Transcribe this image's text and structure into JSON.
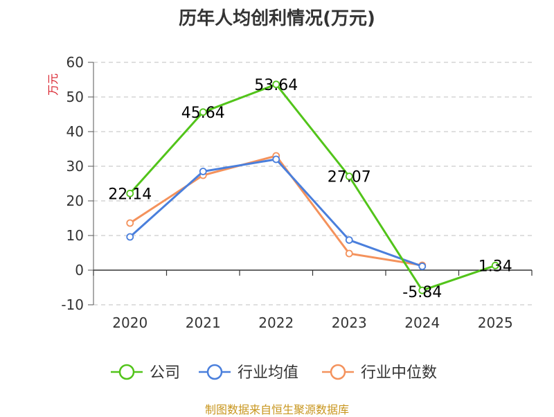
{
  "chart_data": {
    "type": "line",
    "title": "历年人均创利情况(万元)",
    "ylabel": "万元",
    "categories": [
      "2020",
      "2021",
      "2022",
      "2023",
      "2024",
      "2025"
    ],
    "ylim": [
      -10,
      60
    ],
    "yticks": [
      -10,
      0,
      10,
      20,
      30,
      40,
      50,
      60
    ],
    "grid": true,
    "legend_position": "bottom",
    "series": [
      {
        "name": "公司",
        "color": "#52c41a",
        "labeled": true,
        "values": [
          22.14,
          45.64,
          53.64,
          27.07,
          -5.84,
          1.34
        ],
        "labels": [
          "22.14",
          "45.64",
          "53.64",
          "27.07",
          "-5.84",
          "1.34"
        ]
      },
      {
        "name": "行业均值",
        "color": "#4a7fdc",
        "labeled": false,
        "values": [
          9.6,
          28.5,
          32.0,
          8.7,
          1.1,
          null
        ]
      },
      {
        "name": "行业中位数",
        "color": "#f4925c",
        "labeled": false,
        "values": [
          13.6,
          27.4,
          33.0,
          4.8,
          1.4,
          null
        ]
      }
    ]
  },
  "source": "制图数据来自恒生聚源数据库"
}
